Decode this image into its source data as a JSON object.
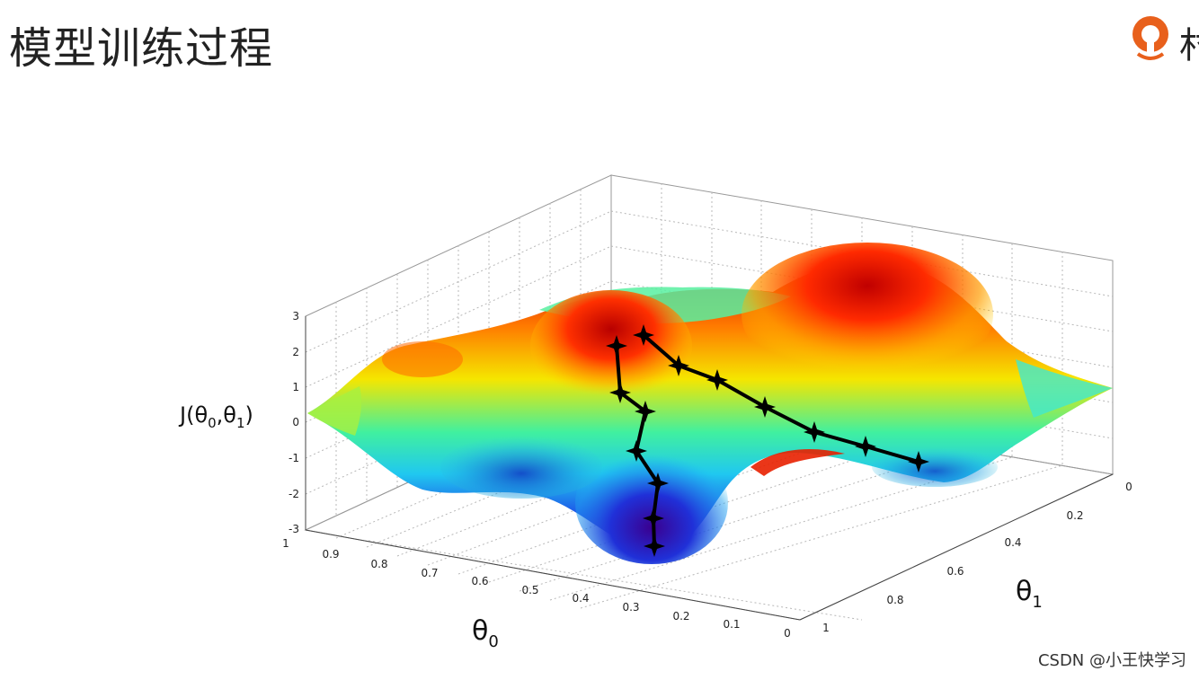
{
  "slide": {
    "title": "模型训练过程",
    "logo_text": "村"
  },
  "figure": {
    "z_label_j": "J(θ",
    "z_label_s0": "0",
    "z_label_mid": ",θ",
    "z_label_s1": "1",
    "z_label_end": ")",
    "x_label_theta": "θ",
    "x_label_sub": "0",
    "y_label_theta": "θ",
    "y_label_sub": "1",
    "z_ticks": [
      "3",
      "2",
      "1",
      "0",
      "-1",
      "-2",
      "-3"
    ],
    "theta0_ticks": [
      "1",
      "0.9",
      "0.8",
      "0.7",
      "0.6",
      "0.5",
      "0.4",
      "0.3",
      "0.2",
      "0.1",
      "0"
    ],
    "theta1_ticks": [
      "0",
      "0.2",
      "0.4",
      "0.6",
      "0.8",
      "1"
    ],
    "colors": {
      "high": "#d40000",
      "mid": "#f0e000",
      "low": "#1060e0",
      "valley": "#5a00a0",
      "path": "#000000"
    }
  },
  "watermark": "CSDN @小王快学习"
}
